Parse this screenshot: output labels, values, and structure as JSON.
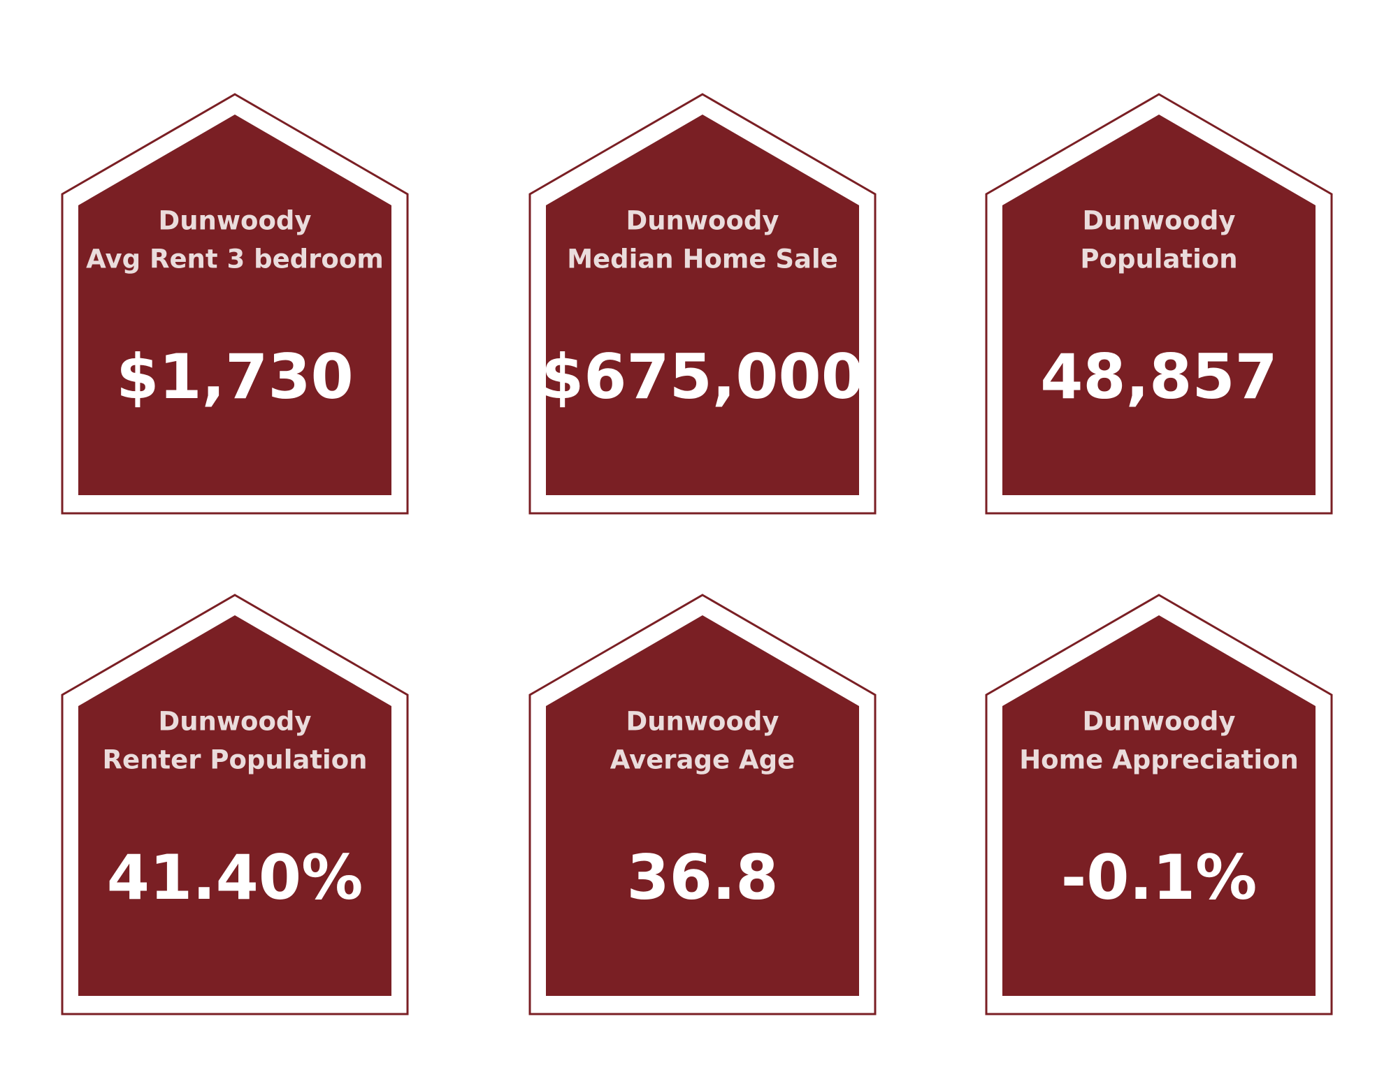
{
  "cards": [
    {
      "place": "Dunwoody",
      "label": "Avg Rent 3 bedroom",
      "value": "$1,730"
    },
    {
      "place": "Dunwoody",
      "label": "Median Home Sale",
      "value": "$675,000"
    },
    {
      "place": "Dunwoody",
      "label": "Population",
      "value": "48,857"
    },
    {
      "place": "Dunwoody",
      "label": "Renter Population",
      "value": "41.40%"
    },
    {
      "place": "Dunwoody",
      "label": "Average Age",
      "value": "36.8"
    },
    {
      "place": "Dunwoody",
      "label": "Home Appreciation",
      "value": "-0.1%"
    }
  ]
}
